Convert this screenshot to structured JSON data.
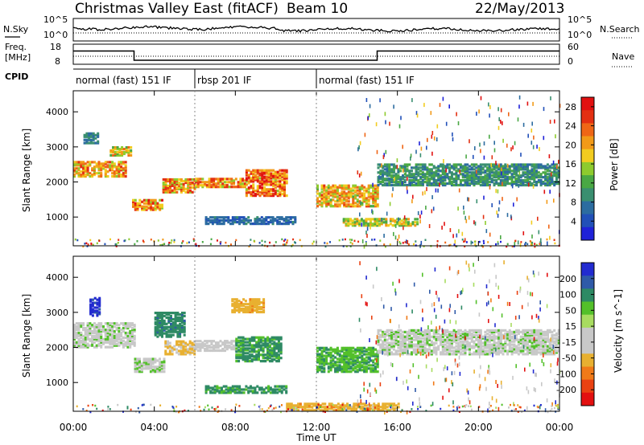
{
  "header": {
    "title": "Christmas Valley East (fitACF)",
    "beam": "Beam 10",
    "date": "22/May/2013"
  },
  "summary_panels": {
    "noise_left_label": "N.Sky",
    "noise_right_label": "N.Search",
    "noise_left_ticks": [
      "10^5",
      "10^0"
    ],
    "noise_right_ticks": [
      "10^5",
      "10^0"
    ],
    "freq_label_1": "Freq.",
    "freq_label_2": "[MHz]",
    "freq_ticks": [
      "18",
      "8"
    ],
    "nave_label": "Nave",
    "nave_ticks": [
      "60",
      "0"
    ],
    "cpid_label": "CPID",
    "cpid_segments": [
      {
        "label": "normal (fast) 151 IF",
        "start_h": 0,
        "end_h": 6
      },
      {
        "label": "rbsp 201 IF",
        "start_h": 6,
        "end_h": 12
      },
      {
        "label": "normal (fast) 151 IF",
        "start_h": 12,
        "end_h": 24
      }
    ],
    "freq_steps_mhz": [
      {
        "start_h": 0,
        "end_h": 3,
        "value": 14.6
      },
      {
        "start_h": 3,
        "end_h": 15,
        "value": 10.0
      },
      {
        "start_h": 15,
        "end_h": 24,
        "value": 14.6
      }
    ]
  },
  "colors": {
    "power_scale": [
      "#1f22d8",
      "#2150b8",
      "#2c6ca0",
      "#3a8f70",
      "#4aa844",
      "#8ecb2e",
      "#f2cc20",
      "#f29a18",
      "#ef6616",
      "#e33012",
      "#e11010"
    ],
    "velocity_scale": [
      "#222bd0",
      "#2f5aa8",
      "#2e8a64",
      "#53c02a",
      "#a8dc60",
      "#c8c8c8",
      "#c8c8c8",
      "#e8b030",
      "#f07a18",
      "#ea4212",
      "#e31010"
    ]
  },
  "chart_data": [
    {
      "type": "heatmap",
      "parameter": "power",
      "xlabel": "Time UT",
      "ylabel": "Slant Range [km]",
      "xlim": [
        "00:00",
        "24:00"
      ],
      "ylim": [
        180,
        4600
      ],
      "x_ticks": [
        "00:00",
        "04:00",
        "08:00",
        "12:00",
        "16:00",
        "20:00",
        "00:00"
      ],
      "y_ticks": [
        1000,
        2000,
        3000,
        4000
      ],
      "colorbar_label": "Power [dB]",
      "colorbar_ticks": [
        4,
        8,
        12,
        16,
        20,
        24,
        28
      ],
      "colorbar_range": [
        0,
        30
      ],
      "echo_bands": [
        {
          "start_h": 0.0,
          "end_h": 2.6,
          "range_km": [
            2150,
            2600
          ],
          "peak": 26
        },
        {
          "start_h": 1.8,
          "end_h": 2.8,
          "range_km": [
            2750,
            3000
          ],
          "peak": 22
        },
        {
          "start_h": 0.5,
          "end_h": 1.2,
          "range_km": [
            3100,
            3400
          ],
          "peak": 10
        },
        {
          "start_h": 2.9,
          "end_h": 4.4,
          "range_km": [
            1200,
            1500
          ],
          "peak": 27
        },
        {
          "start_h": 4.4,
          "end_h": 6.0,
          "range_km": [
            1700,
            2100
          ],
          "peak": 26
        },
        {
          "start_h": 6.0,
          "end_h": 8.5,
          "range_km": [
            1850,
            2100
          ],
          "peak": 26
        },
        {
          "start_h": 8.5,
          "end_h": 10.5,
          "range_km": [
            1600,
            2350
          ],
          "peak": 29
        },
        {
          "start_h": 12.0,
          "end_h": 15.0,
          "range_km": [
            1300,
            1900
          ],
          "peak": 24
        },
        {
          "start_h": 13.3,
          "end_h": 17.0,
          "range_km": [
            750,
            950
          ],
          "peak": 20
        },
        {
          "start_h": 15.0,
          "end_h": 24.0,
          "range_km": [
            1900,
            2500
          ],
          "peak": 12
        },
        {
          "start_h": 6.5,
          "end_h": 11.0,
          "range_km": [
            800,
            1000
          ],
          "peak": 8
        }
      ]
    },
    {
      "type": "heatmap",
      "parameter": "velocity",
      "xlabel": "Time UT",
      "ylabel": "Slant Range [km]",
      "xlim": [
        "00:00",
        "24:00"
      ],
      "ylim": [
        180,
        4600
      ],
      "x_ticks": [
        "00:00",
        "04:00",
        "08:00",
        "12:00",
        "16:00",
        "20:00",
        "00:00"
      ],
      "y_ticks": [
        1000,
        2000,
        3000,
        4000
      ],
      "colorbar_label": "Velocity [m s^-1]",
      "colorbar_ticks": [
        200,
        100,
        50,
        15,
        -15,
        -50,
        -100,
        -200
      ],
      "echo_bands": [
        {
          "start_h": 0.0,
          "end_h": 3.0,
          "range_km": [
            2000,
            2700
          ],
          "velocity": 0
        },
        {
          "start_h": 3.0,
          "end_h": 4.5,
          "range_km": [
            1300,
            1700
          ],
          "velocity": 0
        },
        {
          "start_h": 4.5,
          "end_h": 6.0,
          "range_km": [
            1800,
            2200
          ],
          "velocity": -60
        },
        {
          "start_h": 4.0,
          "end_h": 5.5,
          "range_km": [
            2300,
            3000
          ],
          "velocity": 80
        },
        {
          "start_h": 0.8,
          "end_h": 1.3,
          "range_km": [
            2900,
            3400
          ],
          "velocity": 220
        },
        {
          "start_h": 6.0,
          "end_h": 8.0,
          "range_km": [
            1900,
            2200
          ],
          "velocity": -20
        },
        {
          "start_h": 8.0,
          "end_h": 10.2,
          "range_km": [
            1600,
            2300
          ],
          "velocity": 60
        },
        {
          "start_h": 7.8,
          "end_h": 9.4,
          "range_km": [
            3000,
            3400
          ],
          "velocity": -80
        },
        {
          "start_h": 12.0,
          "end_h": 15.0,
          "range_km": [
            1300,
            2000
          ],
          "velocity": 40
        },
        {
          "start_h": 15.0,
          "end_h": 24.0,
          "range_km": [
            1800,
            2500
          ],
          "velocity": 0
        },
        {
          "start_h": 10.5,
          "end_h": 16.0,
          "range_km": [
            200,
            400
          ],
          "velocity": -80
        },
        {
          "start_h": 6.5,
          "end_h": 10.5,
          "range_km": [
            700,
            900
          ],
          "velocity": 60
        }
      ]
    }
  ]
}
